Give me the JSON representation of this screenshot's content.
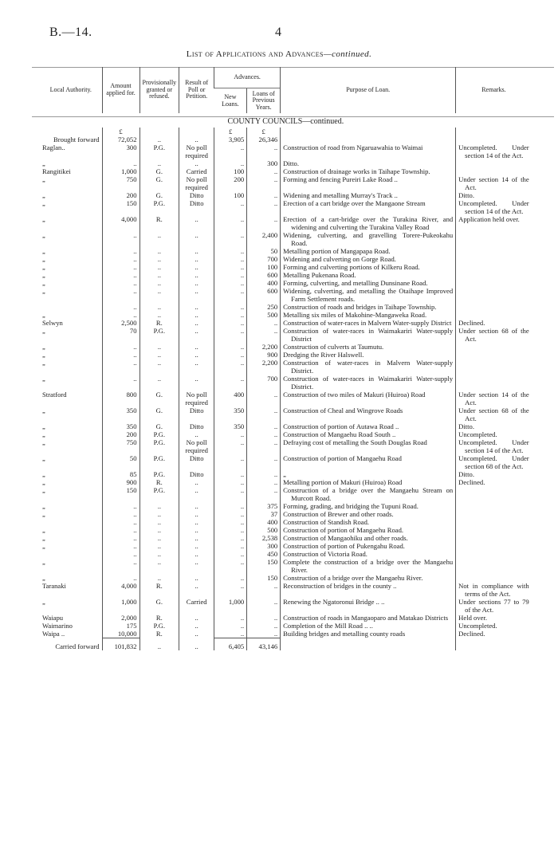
{
  "header": {
    "ref": "B.—14.",
    "page": "4",
    "title": "List of Applications and Advances",
    "title_suffix": "—continued."
  },
  "columns": {
    "authority": "Local Authority.",
    "amount": "Amount applied for.",
    "provisional": "Provisionally granted or refused.",
    "result": "Result of Poll or Petition.",
    "advances": "Advances.",
    "new_loans": "New Loans.",
    "previous": "Loans of Previous Years.",
    "purpose": "Purpose of Loan.",
    "remarks": "Remarks."
  },
  "section": "COUNTY COUNCILS—continued.",
  "currency": "£",
  "brought_forward": {
    "label": "Brought forward",
    "amount": "72,052",
    "provisional": "..",
    "result": "..",
    "new_loans": "3,905",
    "previous": "26,346"
  },
  "rows": [
    [
      "Raglan..",
      "300",
      "P.G.",
      "No poll required",
      "..",
      "..",
      "Construction of road from Ngaruawahia to Waimai",
      "Uncompleted. Under section 14 of the Act."
    ],
    [
      "„",
      "..",
      "..",
      "..",
      "..",
      "300",
      "Ditto.",
      ""
    ],
    [
      "Rangitikei",
      "1,000",
      "G.",
      "Carried",
      "100",
      "..",
      "Construction of drainage works in Taihape Township.",
      ""
    ],
    [
      "„",
      "750",
      "G.",
      "No poll required",
      "200",
      "..",
      "Forming and fencing Pureiri Lake Road ..",
      "Under section 14 of the Act."
    ],
    [
      "„",
      "200",
      "G.",
      "Ditto",
      "100",
      "..",
      "Widening and metalling Murray's Track ..",
      "Ditto."
    ],
    [
      "„",
      "150",
      "P.G.",
      "Ditto",
      "..",
      "..",
      "Erection of a cart bridge over the Mangaone Stream",
      "Uncompleted. Under section 14 of the Act."
    ],
    [
      "„",
      "4,000",
      "R.",
      "..",
      "..",
      "..",
      "Erection of a cart-bridge over the Turakina River, and widening and culverting the Turakina Valley Road",
      "Application held over."
    ],
    [
      "„",
      "..",
      "..",
      "..",
      "..",
      "2,400",
      "Widening, culverting, and gravelling Torere-Pukeokahu Road.",
      ""
    ],
    [
      "„",
      "..",
      "..",
      "..",
      "..",
      "50",
      "Metalling portion of Mangapapa Road.",
      ""
    ],
    [
      "„",
      "..",
      "..",
      "..",
      "..",
      "700",
      "Widening and culverting on Gorge Road.",
      ""
    ],
    [
      "„",
      "..",
      "..",
      "..",
      "..",
      "100",
      "Forming and culverting portions of Kilkeru Road.",
      ""
    ],
    [
      "„",
      "..",
      "..",
      "..",
      "..",
      "600",
      "Metalling Pukenana Road.",
      ""
    ],
    [
      "„",
      "..",
      "..",
      "..",
      "..",
      "400",
      "Forming, culverting, and metalling Dunsinane Road.",
      ""
    ],
    [
      "„",
      "..",
      "..",
      "..",
      "..",
      "600",
      "Widening, culverting, and metalling the Otaihape Improved Farm Settlement roads.",
      ""
    ],
    [
      "",
      "..",
      "..",
      "..",
      "..",
      "250",
      "Construction of roads and bridges in Taihape Township.",
      ""
    ],
    [
      "„",
      "..",
      "..",
      "..",
      "..",
      "500",
      "Metalling six miles of Makohine-Mangaweka Road.",
      ""
    ],
    [
      "Selwyn",
      "2,500",
      "R.",
      "..",
      "..",
      "..",
      "Construction of water-races in Malvern Water-supply District",
      "Declined."
    ],
    [
      "„",
      "70",
      "P.G.",
      "..",
      "..",
      "..",
      "Construction of water-races in Waimakariri Water-supply District",
      "Under section 68 of the Act."
    ],
    [
      "„",
      "..",
      "..",
      "..",
      "..",
      "2,200",
      "Construction of culverts at Taumutu.",
      ""
    ],
    [
      "„",
      "..",
      "..",
      "..",
      "..",
      "900",
      "Dredging the River Halswell.",
      ""
    ],
    [
      "„",
      "..",
      "..",
      "..",
      "..",
      "2,200",
      "Construction of water-races in Malvern Water-supply District.",
      ""
    ],
    [
      "„",
      "..",
      "..",
      "..",
      "..",
      "700",
      "Construction of water-races in Waimakariri Water-supply District.",
      ""
    ],
    [
      "Stratford",
      "800",
      "G.",
      "No poll required",
      "400",
      "..",
      "Construction of two miles of Makuri (Huiroa) Road",
      "Under section 14 of the Act."
    ],
    [
      "„",
      "350",
      "G.",
      "Ditto",
      "350",
      "..",
      "Construction of Cheal and Wingrove Roads",
      "Under section 68 of the Act."
    ],
    [
      "„",
      "350",
      "G.",
      "Ditto",
      "350",
      "..",
      "Construction of portion of Autawa Road ..",
      "Ditto."
    ],
    [
      "„",
      "200",
      "P.G.",
      "..",
      "..",
      "..",
      "Construction of Mangaehu Road South ..",
      "Uncompleted."
    ],
    [
      "„",
      "750",
      "P.G.",
      "No poll required",
      "..",
      "..",
      "Defraying cost of metalling the South Douglas Road",
      "Uncompleted. Under section 14 of the Act."
    ],
    [
      "„",
      "50",
      "P.G.",
      "Ditto",
      "..",
      "..",
      "Construction of portion of Mangaehu Road",
      "Uncompleted. Under section 68 of the Act."
    ],
    [
      "„",
      "85",
      "P.G.",
      "Ditto",
      "..",
      "..",
      "„",
      "Ditto."
    ],
    [
      "„",
      "900",
      "R.",
      "..",
      "..",
      "..",
      "Metalling portion of Makuri (Huiroa) Road",
      "Declined."
    ],
    [
      "„",
      "150",
      "P.G.",
      "..",
      "..",
      "..",
      "Construction of a bridge over the Mangaehu Stream on Murcott Road.",
      ""
    ],
    [
      "„",
      "..",
      "..",
      "..",
      "..",
      "375",
      "Forming, grading, and bridging the Tupuni Road.",
      ""
    ],
    [
      "„",
      "..",
      "..",
      "..",
      "..",
      "37",
      "Construction of Brewer and other roads.",
      ""
    ],
    [
      "",
      "..",
      "..",
      "..",
      "..",
      "400",
      "Construction of Standish Road.",
      ""
    ],
    [
      "„",
      "..",
      "..",
      "..",
      "..",
      "500",
      "Construction of portion of Mangaehu Road.",
      ""
    ],
    [
      "„",
      "..",
      "..",
      "..",
      "..",
      "2,538",
      "Construction of Mangaohiku and other roads.",
      ""
    ],
    [
      "„",
      "..",
      "..",
      "..",
      "..",
      "300",
      "Construction of portion of Pukengahu Road.",
      ""
    ],
    [
      "",
      "..",
      "..",
      "..",
      "..",
      "450",
      "Construction of Victoria Road.",
      ""
    ],
    [
      "„",
      "..",
      "..",
      "..",
      "..",
      "150",
      "Complete the construction of a bridge over the Mangaehu River.",
      ""
    ],
    [
      "„",
      "..",
      "..",
      "..",
      "..",
      "150",
      "Construction of a bridge over the Mangaehu River.",
      ""
    ],
    [
      "Taranaki",
      "4,000",
      "R.",
      "..",
      "..",
      "..",
      "Reconstruction of bridges in the county ..",
      "Not in compliance with terms of the Act."
    ],
    [
      "„",
      "1,000",
      "G.",
      "Carried",
      "1,000",
      "..",
      "Renewing the Ngatoronui Bridge .. ..",
      "Under sections 77 to 79 of the Act."
    ],
    [
      "Waiapu",
      "2,000",
      "R.",
      "..",
      "..",
      "..",
      "Construction of roads in Mangaoparo and Matakao Districts",
      "Held over."
    ],
    [
      "Waimarino",
      "175",
      "P.G.",
      "..",
      "..",
      "..",
      "Completion of the Mill Road .. ..",
      "Uncompleted."
    ],
    [
      "Waipa ..",
      "10,000",
      "R.",
      "..",
      "..",
      "..",
      "Building bridges and metalling county roads",
      "Declined."
    ]
  ],
  "carried_forward": {
    "label": "Carried forward",
    "amount": "101,832",
    "provisional": "..",
    "result": "..",
    "new_loans": "6,405",
    "previous": "43,146"
  }
}
